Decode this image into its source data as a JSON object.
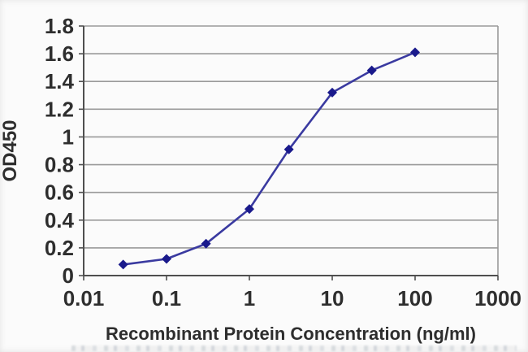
{
  "chart_data": {
    "type": "line",
    "x": [
      0.03,
      0.1,
      0.3,
      1,
      3,
      10,
      30,
      100
    ],
    "y": [
      0.08,
      0.12,
      0.23,
      0.48,
      0.91,
      1.32,
      1.48,
      1.61
    ],
    "title": "",
    "xlabel": "Recombinant Protein Concentration (ng/ml)",
    "ylabel": "OD450",
    "x_scale": "log",
    "xlim": [
      0.01,
      1000
    ],
    "ylim": [
      0,
      1.8
    ],
    "x_ticks": [
      "0.01",
      "0.1",
      "1",
      "10",
      "100",
      "1000"
    ],
    "y_ticks": [
      "0",
      "0.2",
      "0.4",
      "0.6",
      "0.8",
      "1",
      "1.2",
      "1.4",
      "1.6",
      "1.8"
    ],
    "grid": "horizontal",
    "legend": "none",
    "marker": "diamond",
    "colors": {
      "line": "#3a3aa0",
      "marker": "#1a1a8c",
      "grid": "#9a9a9a",
      "axis": "#4f4f4f",
      "text": "#2e2e2e",
      "background": "#fbfbfb"
    }
  }
}
